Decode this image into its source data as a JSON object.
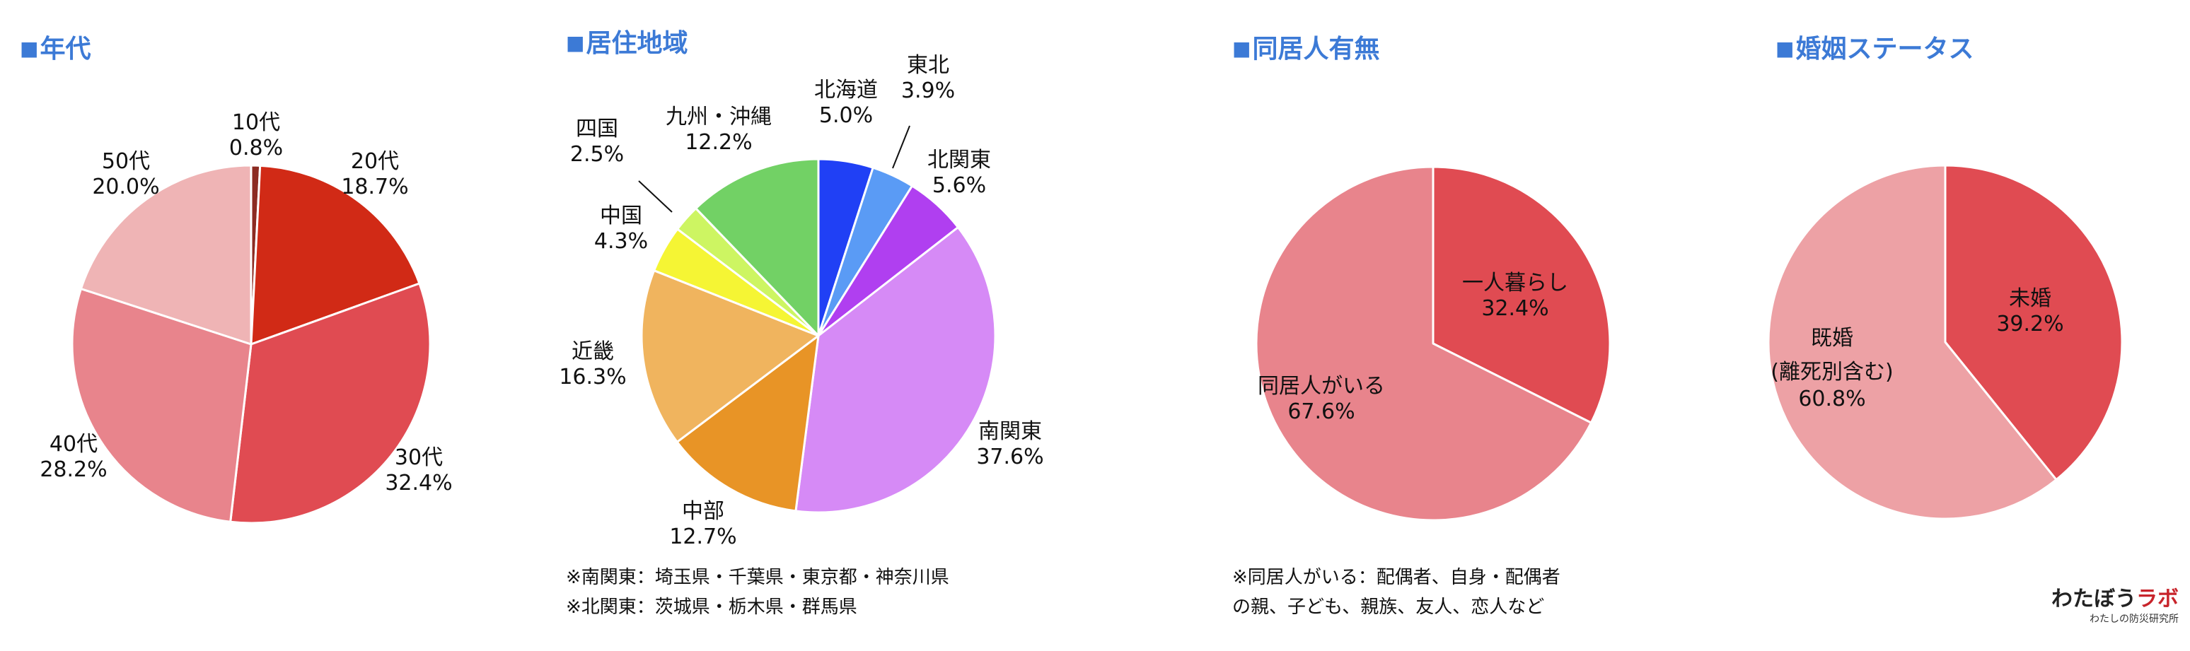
{
  "charts": [
    {
      "title": "年代",
      "type": "pie",
      "slices": [
        {
          "name": "10代",
          "value": 0.8,
          "color": "#8c2b22"
        },
        {
          "name": "20代",
          "value": 18.7,
          "color": "#d12a16"
        },
        {
          "name": "30代",
          "value": 32.4,
          "color": "#e04b52"
        },
        {
          "name": "40代",
          "value": 28.2,
          "color": "#e8848c"
        },
        {
          "name": "50代",
          "value": 20.0,
          "color": "#efb4b5"
        }
      ],
      "labels": [
        {
          "l1": "10代",
          "l2": "0.8%"
        },
        {
          "l1": "20代",
          "l2": "18.7%"
        },
        {
          "l1": "30代",
          "l2": "32.4%"
        },
        {
          "l1": "40代",
          "l2": "28.2%"
        },
        {
          "l1": "50代",
          "l2": "20.0%"
        }
      ]
    },
    {
      "title": "居住地域",
      "type": "pie",
      "slices": [
        {
          "name": "北海道",
          "value": 5.0,
          "color": "#2040f5"
        },
        {
          "name": "東北",
          "value": 3.9,
          "color": "#5a9bf5"
        },
        {
          "name": "北関東",
          "value": 5.6,
          "color": "#b03ff0"
        },
        {
          "name": "南関東",
          "value": 37.6,
          "color": "#d68af6"
        },
        {
          "name": "中部",
          "value": 12.7,
          "color": "#e89426"
        },
        {
          "name": "近畿",
          "value": 16.3,
          "color": "#f0b45e"
        },
        {
          "name": "中国",
          "value": 4.3,
          "color": "#f5f534"
        },
        {
          "name": "四国",
          "value": 2.5,
          "color": "#cdf562"
        },
        {
          "name": "九州・沖縄",
          "value": 12.2,
          "color": "#72d165"
        }
      ],
      "labels": [
        {
          "l1": "北海道",
          "l2": "5.0%"
        },
        {
          "l1": "東北",
          "l2": "3.9%"
        },
        {
          "l1": "北関東",
          "l2": "5.6%"
        },
        {
          "l1": "南関東",
          "l2": "37.6%"
        },
        {
          "l1": "中部",
          "l2": "12.7%"
        },
        {
          "l1": "近畿",
          "l2": "16.3%"
        },
        {
          "l1": "中国",
          "l2": "4.3%"
        },
        {
          "l1": "四国",
          "l2": "2.5%"
        },
        {
          "l1": "九州・沖縄",
          "l2": "12.2%"
        }
      ],
      "notes": [
        "※南関東：埼玉県・千葉県・東京都・神奈川県",
        "※北関東：茨城県・栃木県・群馬県"
      ]
    },
    {
      "title": "同居人有無",
      "type": "pie",
      "slices": [
        {
          "name": "一人暮らし",
          "value": 32.4,
          "color": "#e04b52"
        },
        {
          "name": "同居人がいる",
          "value": 67.6,
          "color": "#e8848c"
        }
      ],
      "labels": [
        {
          "l1": "一人暮らし",
          "l2": "32.4%"
        },
        {
          "l1": "同居人がいる",
          "l2": "67.6%"
        }
      ],
      "notes": [
        "※同居人がいる：配偶者、自身・配偶者",
        "の親、子ども、親族、友人、恋人など"
      ]
    },
    {
      "title": "婚姻ステータス",
      "type": "pie",
      "slices": [
        {
          "name": "未婚",
          "value": 39.2,
          "color": "#e04b52"
        },
        {
          "name": "既婚",
          "value": 60.8,
          "color": "#eda1a5"
        }
      ],
      "labels": [
        {
          "l1": "未婚",
          "l2": "39.2%"
        },
        {
          "l1": "既婚",
          "l2": "(離死別含む)",
          "l3": "60.8%"
        }
      ]
    }
  ],
  "logo": {
    "main_a": "わたぼう",
    "main_b": "ラボ",
    "sub": "わたしの防災研究所"
  }
}
